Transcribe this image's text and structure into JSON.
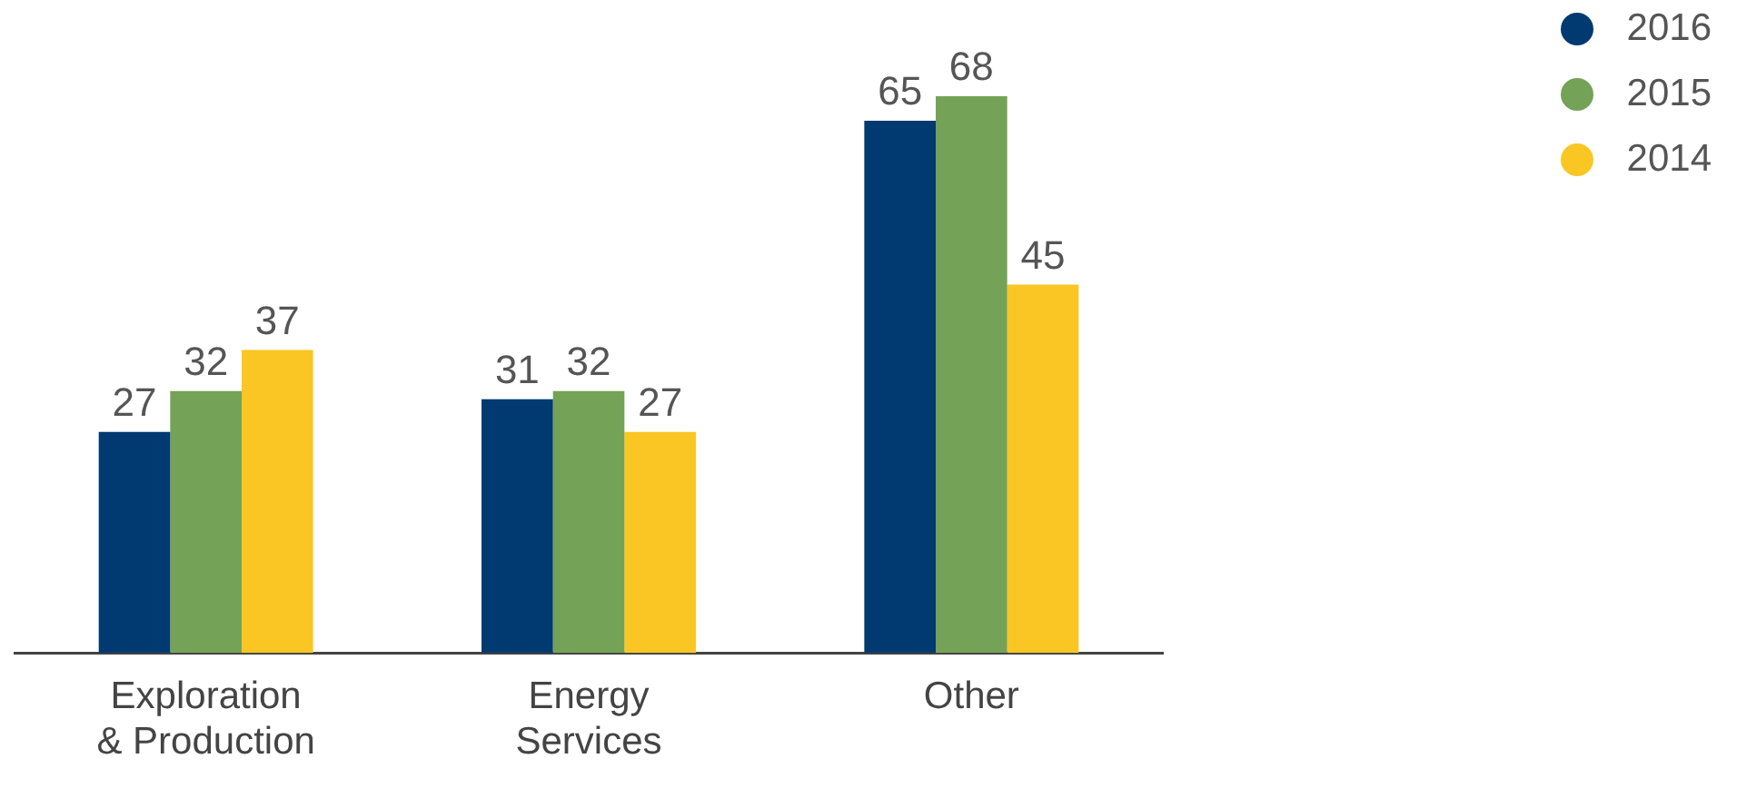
{
  "chart_data": {
    "type": "bar",
    "categories": [
      "Exploration & Production",
      "Energy Services",
      "Other"
    ],
    "series": [
      {
        "name": "2016",
        "color": "#003a70",
        "values": [
          27,
          31,
          65
        ]
      },
      {
        "name": "2015",
        "color": "#74a257",
        "values": [
          32,
          32,
          68
        ]
      },
      {
        "name": "2014",
        "color": "#f9c623",
        "values": [
          37,
          27,
          45
        ]
      }
    ],
    "data_labels": true,
    "legend": "top right",
    "grid": false
  }
}
